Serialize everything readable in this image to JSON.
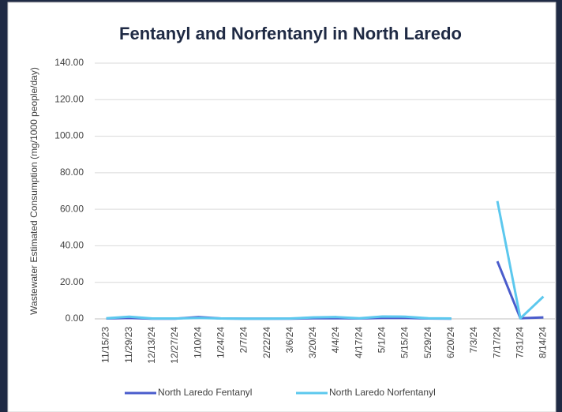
{
  "chart_data": {
    "type": "line",
    "title": "Fentanyl and Norfentanyl in North Laredo",
    "y_axis_label": "Wastewater Estimated Consumption (mg/1000 people/day)",
    "categories": [
      "11/15/23",
      "11/29/23",
      "12/13/24",
      "12/27/24",
      "1/10/24",
      "1/24/24",
      "2/7/24",
      "2/22/24",
      "3/6/24",
      "3/20/24",
      "4/4/24",
      "4/17/24",
      "5/1/24",
      "5/15/24",
      "5/29/24",
      "6/20/24",
      "7/3/24",
      "7/17/24",
      "7/31/24",
      "8/14/24"
    ],
    "series": [
      {
        "name": "North Laredo Fentanyl",
        "color": "#4a5ccc",
        "values": [
          0.2,
          0.5,
          0.1,
          0.1,
          1.0,
          0.2,
          0.1,
          0.1,
          0.1,
          0.3,
          0.4,
          0.2,
          0.5,
          0.5,
          0.2,
          0.1,
          null,
          31.5,
          0.3,
          0.8
        ]
      },
      {
        "name": "North Laredo Norfentanyl",
        "color": "#5cc8ee",
        "values": [
          0.3,
          1.2,
          0.2,
          0.2,
          0.5,
          0.2,
          0.1,
          0.1,
          0.2,
          0.8,
          1.0,
          0.3,
          1.3,
          1.2,
          0.3,
          0.2,
          null,
          64.5,
          0.3,
          12.2
        ]
      }
    ],
    "ylim": [
      0,
      140
    ],
    "yticks": [
      {
        "value": 0,
        "label": "0.00"
      },
      {
        "value": 20,
        "label": "20.00"
      },
      {
        "value": 40,
        "label": "40.00"
      },
      {
        "value": 60,
        "label": "60.00"
      },
      {
        "value": 80,
        "label": "80.00"
      },
      {
        "value": 100,
        "label": "100.00"
      },
      {
        "value": 120,
        "label": "120.00"
      },
      {
        "value": 140,
        "label": "140.00"
      }
    ],
    "grid": true,
    "legend": "bottom"
  }
}
